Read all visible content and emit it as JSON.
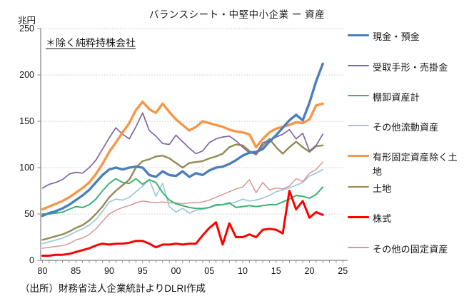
{
  "title": "バランスシート・中堅中小企業 ー 資産",
  "unit_label": "兆円",
  "annotation": "＊除く純粋持株会社",
  "source": "（出所）財務省法人企業統計よりDLRI作成",
  "chart_data": {
    "type": "line",
    "x_start": 1980,
    "x_end": 2022,
    "xlim": [
      1980,
      2025
    ],
    "ylim": [
      0,
      250
    ],
    "y_ticks": [
      0,
      50,
      100,
      150,
      200,
      250
    ],
    "x_tick_labels": [
      "80",
      "85",
      "90",
      "95",
      "00",
      "05",
      "10",
      "15",
      "20",
      "25"
    ],
    "x_tick_years": [
      1980,
      1985,
      1990,
      1995,
      2000,
      2005,
      2010,
      2015,
      2020,
      2025
    ],
    "grid": "horizontal-dotted",
    "legend_position": "right",
    "ylabel": "兆円",
    "years": [
      1980,
      1981,
      1982,
      1983,
      1984,
      1985,
      1986,
      1987,
      1988,
      1989,
      1990,
      1991,
      1992,
      1993,
      1994,
      1995,
      1996,
      1997,
      1998,
      1999,
      2000,
      2001,
      2002,
      2003,
      2004,
      2005,
      2006,
      2007,
      2008,
      2009,
      2010,
      2011,
      2012,
      2013,
      2014,
      2015,
      2016,
      2017,
      2018,
      2019,
      2020,
      2021,
      2022
    ],
    "series": [
      {
        "key": "cash-deposits",
        "name": "現金・預金",
        "color": "#4A7EBE",
        "width": 3.4,
        "values": [
          48,
          51,
          53,
          56,
          60,
          65,
          70,
          76,
          84,
          92,
          98,
          100,
          98,
          100,
          101,
          100,
          92,
          90,
          96,
          92,
          91,
          96,
          90,
          94,
          92,
          97,
          100,
          101,
          104,
          108,
          113,
          116,
          117,
          120,
          128,
          135,
          143,
          151,
          157,
          151,
          170,
          193,
          212
        ]
      },
      {
        "key": "notes-receivable",
        "name": "受取手形・売掛金",
        "color": "#8064A2",
        "width": 1.7,
        "values": [
          78,
          82,
          84,
          87,
          93,
          95,
          94,
          100,
          108,
          120,
          132,
          143,
          136,
          131,
          144,
          159,
          140,
          134,
          126,
          125,
          135,
          128,
          121,
          115,
          118,
          127,
          131,
          133,
          134,
          129,
          122,
          116,
          115,
          127,
          129,
          133,
          136,
          141,
          131,
          137,
          118,
          124,
          136
        ]
      },
      {
        "key": "inventory",
        "name": "棚卸資産計",
        "color": "#3CB371",
        "width": 2.0,
        "values": [
          50,
          50,
          51,
          52,
          55,
          58,
          57,
          60,
          66,
          75,
          83,
          88,
          84,
          83,
          88,
          82,
          87,
          84,
          73,
          65,
          61,
          59,
          57,
          56,
          56,
          57,
          60,
          60,
          62,
          57,
          58,
          59,
          58,
          59,
          60,
          60,
          63,
          66,
          70,
          69,
          67,
          71,
          79
        ]
      },
      {
        "key": "other-current-assets",
        "name": "その他流動資産",
        "color": "#9CC7E0",
        "width": 1.7,
        "values": [
          18,
          20,
          22,
          24,
          27,
          31,
          34,
          38,
          44,
          53,
          63,
          66,
          65,
          68,
          74,
          80,
          87,
          69,
          83,
          58,
          52,
          56,
          51,
          54,
          55,
          57,
          59,
          60,
          61,
          63,
          66,
          64,
          65,
          67,
          70,
          74,
          76,
          78,
          81,
          84,
          91,
          94,
          98
        ]
      },
      {
        "key": "tangible-fixed-ex-land",
        "name": "有形固定資産除く土地",
        "color": "#F79646",
        "width": 3.4,
        "values": [
          55,
          58,
          61,
          64,
          68,
          73,
          78,
          84,
          93,
          104,
          117,
          127,
          138,
          148,
          162,
          171,
          163,
          159,
          169,
          160,
          152,
          146,
          140,
          144,
          150,
          148,
          146,
          144,
          141,
          139,
          138,
          136,
          122,
          131,
          138,
          142,
          144,
          146,
          149,
          148,
          152,
          167,
          169
        ]
      },
      {
        "key": "land",
        "name": "土地",
        "color": "#948A54",
        "width": 2.4,
        "values": [
          22,
          24,
          26,
          28,
          31,
          35,
          38,
          43,
          50,
          58,
          68,
          75,
          81,
          87,
          100,
          107,
          109,
          112,
          113,
          110,
          105,
          100,
          105,
          106,
          107,
          110,
          112,
          115,
          122,
          125,
          124,
          118,
          114,
          124,
          131,
          122,
          115,
          122,
          128,
          122,
          117,
          123,
          124
        ]
      },
      {
        "key": "stocks",
        "name": "株式",
        "color": "#FF0000",
        "width": 3.0,
        "values": [
          5,
          5,
          6,
          6,
          7,
          9,
          11,
          13,
          16,
          18,
          17,
          18,
          18,
          19,
          21,
          21,
          18,
          14,
          17,
          17,
          18,
          17,
          18,
          18,
          27,
          35,
          41,
          17,
          40,
          25,
          25,
          28,
          25,
          33,
          34,
          33,
          29,
          75,
          55,
          64,
          46,
          52,
          49
        ]
      },
      {
        "key": "other-fixed-assets",
        "name": "その他の固定資産",
        "color": "#D99694",
        "width": 1.5,
        "values": [
          13,
          14,
          15,
          16,
          18,
          22,
          24,
          28,
          34,
          42,
          50,
          54,
          57,
          59,
          62,
          64,
          63,
          62,
          63,
          62,
          62,
          61,
          62,
          62,
          63,
          65,
          68,
          71,
          74,
          77,
          79,
          87,
          73,
          84,
          76,
          78,
          77,
          80,
          88,
          85,
          94,
          98,
          106
        ]
      }
    ]
  }
}
